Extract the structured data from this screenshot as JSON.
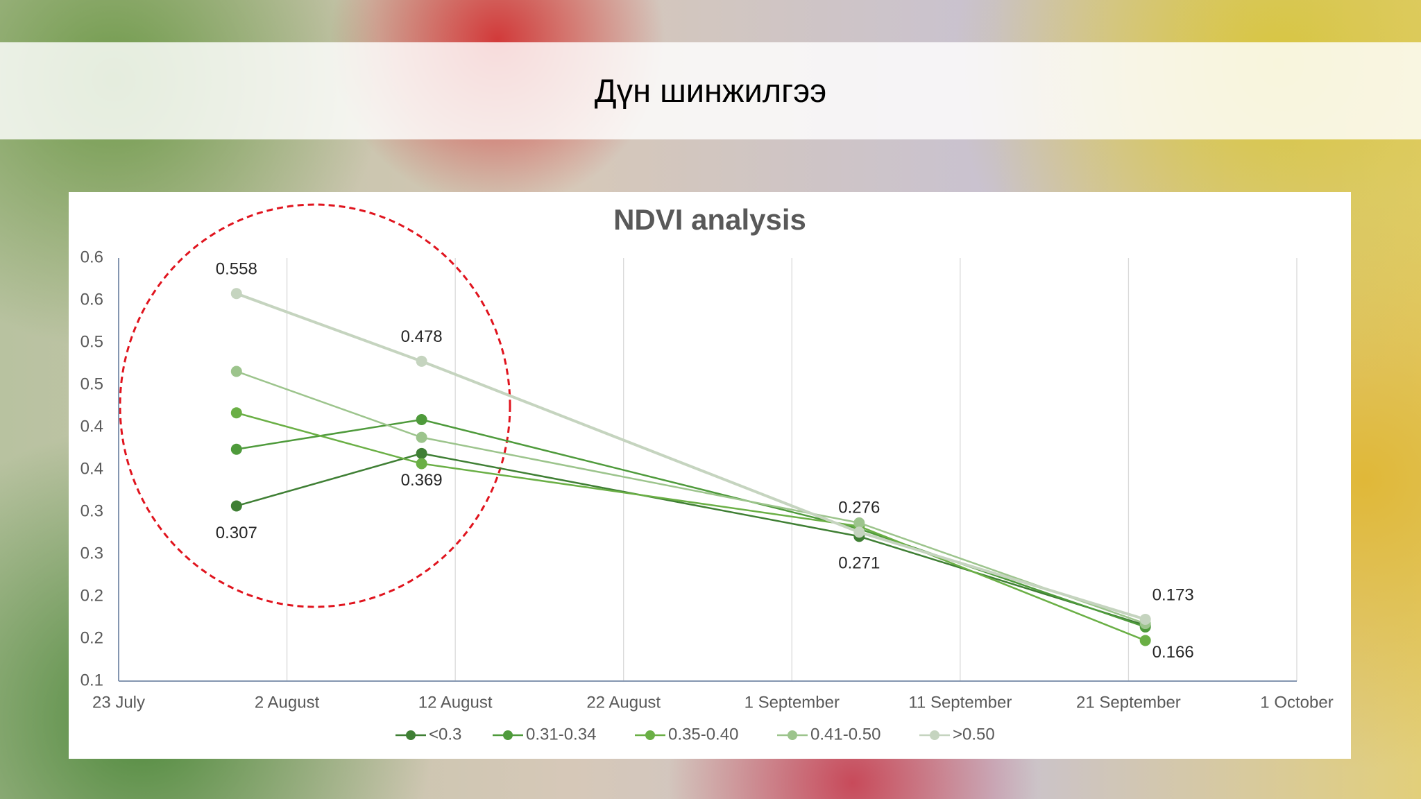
{
  "header": {
    "title": "Дүн шинжилгээ"
  },
  "chart_data": {
    "type": "line",
    "title": "NDVI analysis",
    "x": [
      "30 July",
      "10 August",
      "5 September",
      "22 September"
    ],
    "xlim": [
      "23 July",
      "1 October"
    ],
    "xticks": [
      "23 July",
      "2 August",
      "12 August",
      "22 August",
      "1 September",
      "11 September",
      "21 September",
      "1 October"
    ],
    "ylim": [
      0.1,
      0.6
    ],
    "yticks": [
      0.1,
      {
        "value": 0.15,
        "label": "0.2"
      },
      0.2,
      {
        "value": 0.25,
        "label": "0.3"
      },
      0.3,
      {
        "value": 0.35,
        "label": "0.4"
      },
      0.4,
      {
        "value": 0.45,
        "label": "0.5"
      },
      0.5,
      {
        "value": 0.55,
        "label": "0.6"
      },
      0.6
    ],
    "grid": "x",
    "legend": "bottom",
    "series": [
      {
        "name": "<0.3",
        "color": "#3f7f34",
        "values": [
          0.307,
          0.369,
          0.271,
          0.166
        ],
        "value_labels": [
          "0.307",
          "0.369",
          "0.271",
          "0.166"
        ]
      },
      {
        "name": "0.31-0.34",
        "color": "#4e9a3b",
        "values": [
          0.374,
          0.409,
          0.28,
          0.164
        ]
      },
      {
        "name": "0.35-0.40",
        "color": "#6aaf45",
        "values": [
          0.417,
          0.357,
          0.283,
          0.148
        ]
      },
      {
        "name": "0.41-0.50",
        "color": "#9cc48c",
        "values": [
          0.466,
          0.388,
          0.287,
          0.168
        ]
      },
      {
        "name": ">0.50",
        "color": "#c5d4bf",
        "values": [
          0.558,
          0.478,
          0.276,
          0.173
        ],
        "value_labels": [
          "0.558",
          "0.478",
          "0.276",
          "0.173"
        ]
      }
    ]
  }
}
